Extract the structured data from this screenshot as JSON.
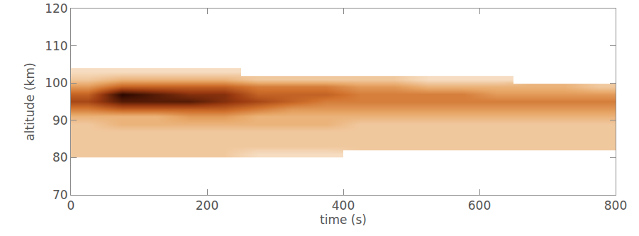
{
  "chart_data": {
    "type": "heatmap",
    "x_label": "time (s)",
    "y_label": "altitude (km)",
    "xlim": [
      0,
      800
    ],
    "xticks": [
      0,
      200,
      400,
      600,
      800
    ],
    "ylim": [
      70,
      120
    ],
    "yticks": [
      70,
      80,
      90,
      100,
      110,
      120
    ],
    "tick_labels": true,
    "grid": false,
    "x": [
      25,
      75,
      125,
      175,
      225,
      275,
      325,
      375,
      425,
      475,
      525,
      575,
      625,
      675,
      725,
      775
    ],
    "y": [
      81,
      83,
      85,
      87,
      89,
      91,
      93,
      95,
      97,
      99,
      101,
      103
    ],
    "zlim": [
      0,
      10
    ],
    "cells": [
      [
        2,
        2,
        2,
        2,
        2,
        1,
        1,
        1,
        null,
        null,
        null,
        null,
        null,
        null,
        null,
        null
      ],
      [
        2,
        2,
        2,
        2,
        2,
        2,
        2,
        2,
        2,
        2,
        2,
        2,
        2,
        2,
        2,
        2
      ],
      [
        2,
        2,
        2,
        2,
        2,
        2,
        2,
        2,
        2,
        2,
        2,
        2,
        2,
        2,
        2,
        2
      ],
      [
        2,
        2,
        2,
        2,
        2,
        2,
        2,
        2,
        2,
        2,
        2,
        2,
        2,
        2,
        2,
        2
      ],
      [
        2,
        3,
        3,
        3,
        3,
        3,
        3,
        3,
        2,
        2,
        2,
        2,
        2,
        2,
        2,
        2
      ],
      [
        3,
        3,
        3,
        4,
        4,
        3,
        3,
        3,
        3,
        3,
        3,
        3,
        3,
        3,
        3,
        3
      ],
      [
        5,
        6,
        6,
        6,
        6,
        5,
        4,
        4,
        4,
        4,
        4,
        4,
        4,
        4,
        4,
        4
      ],
      [
        7,
        9,
        9,
        9,
        8,
        7,
        6,
        5,
        5,
        5,
        5,
        5,
        5,
        5,
        5,
        5
      ],
      [
        6,
        10,
        9,
        8,
        8,
        6,
        6,
        6,
        5,
        5,
        5,
        5,
        4,
        4,
        4,
        4
      ],
      [
        4,
        6,
        6,
        6,
        6,
        5,
        5,
        5,
        4,
        4,
        3,
        3,
        3,
        3,
        3,
        2
      ],
      [
        2,
        3,
        3,
        3,
        3,
        2,
        2,
        2,
        2,
        2,
        1,
        1,
        1,
        null,
        null,
        null
      ],
      [
        1,
        1,
        1,
        1,
        1,
        null,
        null,
        null,
        null,
        null,
        null,
        null,
        null,
        null,
        null,
        null
      ]
    ]
  }
}
